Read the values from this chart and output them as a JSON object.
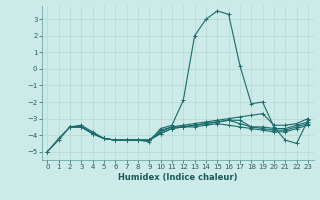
{
  "xlabel": "Humidex (Indice chaleur)",
  "background_color": "#cceae7",
  "grid_color": "#b8d8d4",
  "line_color": "#1a6b6b",
  "xlim": [
    -0.5,
    23.5
  ],
  "ylim": [
    -5.5,
    3.8
  ],
  "yticks": [
    -5,
    -4,
    -3,
    -2,
    -1,
    0,
    1,
    2,
    3
  ],
  "xticks": [
    0,
    1,
    2,
    3,
    4,
    5,
    6,
    7,
    8,
    9,
    10,
    11,
    12,
    13,
    14,
    15,
    16,
    17,
    18,
    19,
    20,
    21,
    22,
    23
  ],
  "series": [
    {
      "x": [
        0,
        1,
        2,
        3,
        4,
        5,
        6,
        7,
        8,
        9,
        10,
        11,
        12,
        13,
        14,
        15,
        16,
        17,
        18,
        19,
        20,
        21,
        22,
        23
      ],
      "y": [
        -5.0,
        -4.2,
        -3.5,
        -3.4,
        -3.8,
        -4.2,
        -4.3,
        -4.3,
        -4.3,
        -4.4,
        -3.6,
        -3.4,
        -1.9,
        2.0,
        3.0,
        3.5,
        3.3,
        0.2,
        -2.1,
        -2.0,
        -3.5,
        -4.3,
        -4.5,
        -3.1
      ]
    },
    {
      "x": [
        0,
        1,
        2,
        3,
        4,
        5,
        6,
        7,
        8,
        9,
        10,
        11,
        12,
        13,
        14,
        15,
        16,
        17,
        18,
        19,
        20,
        21,
        22,
        23
      ],
      "y": [
        -5.0,
        -4.3,
        -3.5,
        -3.5,
        -3.9,
        -4.2,
        -4.3,
        -4.3,
        -4.3,
        -4.3,
        -3.8,
        -3.5,
        -3.4,
        -3.3,
        -3.2,
        -3.1,
        -3.0,
        -2.9,
        -2.8,
        -2.7,
        -3.4,
        -3.4,
        -3.3,
        -3.0
      ]
    },
    {
      "x": [
        2,
        3,
        4,
        5,
        6,
        7,
        8,
        9,
        10,
        11,
        12,
        13,
        14,
        15,
        16,
        17,
        18,
        19,
        20,
        21,
        22,
        23
      ],
      "y": [
        -3.5,
        -3.5,
        -3.9,
        -4.2,
        -4.3,
        -4.3,
        -4.3,
        -4.3,
        -3.7,
        -3.5,
        -3.5,
        -3.4,
        -3.3,
        -3.2,
        -3.1,
        -3.3,
        -3.5,
        -3.5,
        -3.6,
        -3.6,
        -3.4,
        -3.2
      ]
    },
    {
      "x": [
        2,
        3,
        4,
        5,
        6,
        7,
        8,
        9,
        10,
        11,
        12,
        13,
        14,
        15,
        16,
        17,
        18,
        19,
        20,
        21,
        22,
        23
      ],
      "y": [
        -3.5,
        -3.5,
        -3.9,
        -4.2,
        -4.3,
        -4.3,
        -4.3,
        -4.3,
        -3.9,
        -3.6,
        -3.5,
        -3.4,
        -3.3,
        -3.2,
        -3.1,
        -3.1,
        -3.5,
        -3.6,
        -3.7,
        -3.7,
        -3.5,
        -3.3
      ]
    },
    {
      "x": [
        2,
        3,
        4,
        5,
        6,
        7,
        8,
        9,
        10,
        11,
        12,
        13,
        14,
        15,
        16,
        17,
        18,
        19,
        20,
        21,
        22,
        23
      ],
      "y": [
        -3.5,
        -3.5,
        -3.9,
        -4.2,
        -4.3,
        -4.3,
        -4.3,
        -4.3,
        -3.9,
        -3.6,
        -3.5,
        -3.5,
        -3.4,
        -3.3,
        -3.4,
        -3.5,
        -3.6,
        -3.7,
        -3.8,
        -3.8,
        -3.6,
        -3.4
      ]
    }
  ]
}
